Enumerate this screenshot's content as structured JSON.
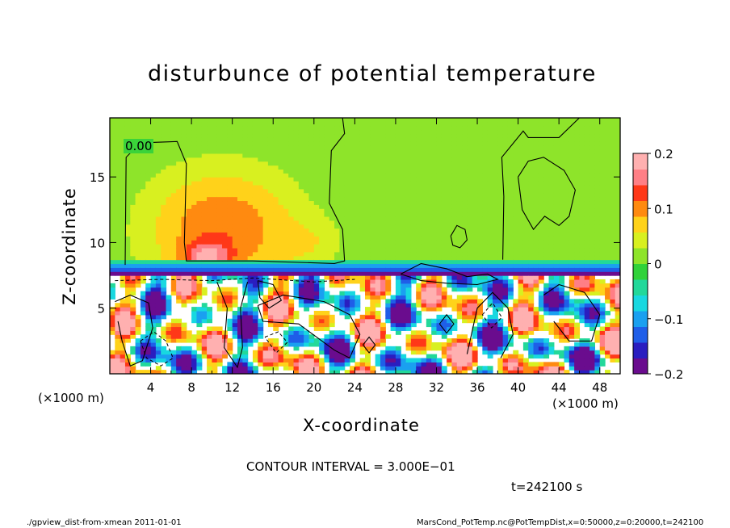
{
  "chart_data": {
    "type": "heatmap",
    "title": "disturbunce of potential temperature",
    "xlabel": "X-coordinate",
    "ylabel": "Z-coordinate",
    "x_unit": "(×1000 m)",
    "z_unit": "(×1000 m)",
    "xlim": [
      0,
      50
    ],
    "ylim": [
      0,
      19.5
    ],
    "x_ticks": [
      "4",
      "8",
      "12",
      "16",
      "20",
      "24",
      "28",
      "32",
      "36",
      "40",
      "44",
      "48"
    ],
    "y_ticks": [
      "5",
      "10",
      "15"
    ],
    "colorbar": {
      "range": [
        -0.2,
        0.2
      ],
      "ticks": [
        "0.2",
        "0.1",
        "0",
        "−0.1",
        "−0.2"
      ],
      "colors": [
        "#6a0c8e",
        "#2a1ec0",
        "#1f5ee8",
        "#1aa0f0",
        "#18d8e0",
        "#22d89a",
        "#30d23a",
        "#8ee42a",
        "#d8f020",
        "#ffd21a",
        "#ff8a10",
        "#ff3818",
        "#ff7f86",
        "#ffb0b0"
      ]
    },
    "contour_label": "0.00",
    "contour_interval_text": "CONTOUR INTERVAL = 3.000E−01",
    "time_text": "t=242100 s",
    "grid": false
  },
  "footer": {
    "left": "./gpview_dist-from-xmean  2011-01-01",
    "right": "MarsCond_PotTemp.nc@PotTempDist,x=0:50000,z=0:20000,t=242100"
  }
}
